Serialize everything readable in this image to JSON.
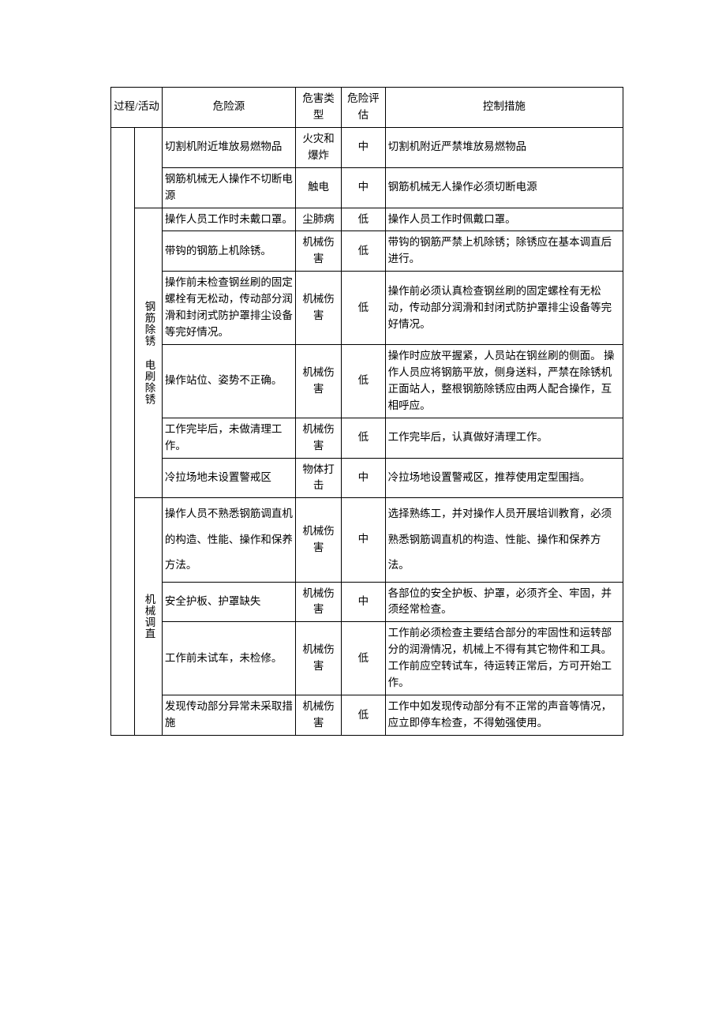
{
  "header": {
    "process": "过程/活动",
    "hazard": "危险源",
    "type": "危害类型",
    "eval": "危险评估",
    "measure": "控制措施"
  },
  "group1": {
    "label": ""
  },
  "group2": {
    "label": "钢筋除锈 电刷除锈"
  },
  "group3": {
    "label": "机械调直"
  },
  "rows": {
    "r1": {
      "hazard": "切割机附近堆放易燃物品",
      "type": "火灾和爆炸",
      "eval": "中",
      "measure": "切割机附近严禁堆放易燃物品"
    },
    "r2": {
      "hazard": "钢筋机械无人操作不切断电源",
      "type": "触电",
      "eval": "中",
      "measure": "钢筋机械无人操作必须切断电源"
    },
    "r3": {
      "hazard": "操作人员工作时未戴口罩。",
      "type": "尘肺病",
      "eval": "低",
      "measure": "操作人员工作时佩戴口罩。"
    },
    "r4": {
      "hazard": "带钩的钢筋上机除锈。",
      "type": "机械伤害",
      "eval": "低",
      "measure": "带钩的钢筋严禁上机除锈；除锈应在基本调直后进行。"
    },
    "r5": {
      "hazard": "操作前未检查钢丝刷的固定螺栓有无松动，传动部分润滑和封闭式防护罩排尘设备等完好情况。",
      "type": "机械伤害",
      "eval": "低",
      "measure": "操作前必须认真检查钢丝刷的固定螺栓有无松动，传动部分润滑和封闭式防护罩排尘设备等完好情况。"
    },
    "r6": {
      "hazard": "操作站位、姿势不正确。",
      "type": "机械伤害",
      "eval": "低",
      "measure": "操作时应放平握紧，人员站在钢丝刷的侧面。\n操作人员应将钢筋平放，侧身送料，严禁在除锈机正面站人，整根钢筋除锈应由两人配合操作，互相呼应。"
    },
    "r7": {
      "hazard": "工作完毕后，未做清理工作。",
      "type": "机械伤害",
      "eval": "低",
      "measure": "工作完毕后，认真做好清理工作。"
    },
    "r8": {
      "hazard": "冷拉场地未设置警戒区",
      "type": "物体打击",
      "eval": "中",
      "measure": "冷拉场地设置警戒区，推荐使用定型围挡。"
    },
    "r9": {
      "hazard": "操作人员不熟悉钢筋调直机的构造、性能、操作和保养方法。",
      "type": "机械伤害",
      "eval": "中",
      "measure": "选择熟练工，并对操作人员开展培训教育，必须熟悉钢筋调直机的构造、性能、操作和保养方法。"
    },
    "r10": {
      "hazard": "安全护板、护罩缺失",
      "type": "机械伤害",
      "eval": "中",
      "measure": "各部位的安全护板、护罩，必须齐全、牢固，并须经常检查。"
    },
    "r11": {
      "hazard": "工作前未试车，未检修。",
      "type": "机械伤害",
      "eval": "低",
      "measure": "工作前必须检查主要结合部分的牢固性和运转部分的润滑情况，机械上不得有其它物件和工具。\n工作前应空转试车，待运转正常后，方可开始工作。"
    },
    "r12": {
      "hazard": "发现传动部分异常未采取措施",
      "type": "机械伤害",
      "eval": "低",
      "measure": "工作中如发现传动部分有不正常的声音等情况，应立即停车检查，不得勉强使用。"
    }
  }
}
